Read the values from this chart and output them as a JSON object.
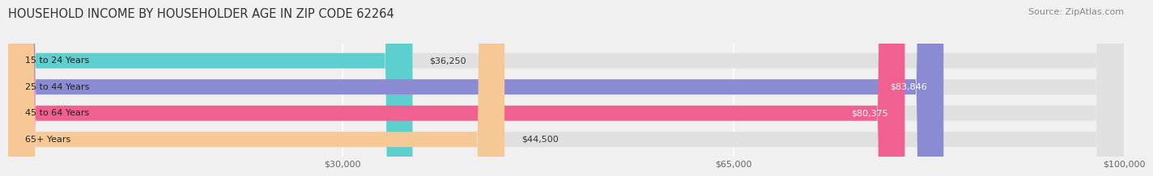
{
  "title": "HOUSEHOLD INCOME BY HOUSEHOLDER AGE IN ZIP CODE 62264",
  "source": "Source: ZipAtlas.com",
  "categories": [
    "15 to 24 Years",
    "25 to 44 Years",
    "45 to 64 Years",
    "65+ Years"
  ],
  "values": [
    36250,
    83846,
    80375,
    44500
  ],
  "bar_colors": [
    "#5ecfcf",
    "#8b8bd4",
    "#f06090",
    "#f5c896"
  ],
  "value_labels": [
    "$36,250",
    "$83,846",
    "$80,375",
    "$44,500"
  ],
  "xmin": 0,
  "xmax": 100000,
  "xticks": [
    30000,
    65000,
    100000
  ],
  "xtick_labels": [
    "$30,000",
    "$65,000",
    "$100,000"
  ],
  "background_color": "#f0f0f0",
  "bar_bg_color": "#e0e0e0",
  "bar_height": 0.58,
  "title_fontsize": 10.5,
  "source_fontsize": 8,
  "label_fontsize": 8,
  "tick_fontsize": 8,
  "rounding_size": 2500
}
